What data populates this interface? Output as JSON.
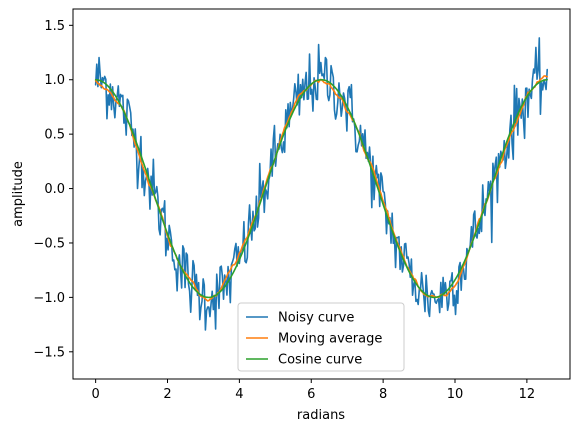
{
  "chart_data": {
    "type": "line",
    "title": "",
    "xlabel": "radians",
    "ylabel": "amplitude",
    "xlim": [
      -0.63,
      13.2
    ],
    "ylim": [
      -1.75,
      1.65
    ],
    "x_ticks": [
      0,
      2,
      4,
      6,
      8,
      10,
      12
    ],
    "y_ticks": [
      -1.5,
      -1.0,
      -0.5,
      0.0,
      0.5,
      1.0,
      1.5
    ],
    "x_tick_labels": [
      "0",
      "2",
      "4",
      "6",
      "8",
      "10",
      "12"
    ],
    "y_tick_labels": [
      "−1.5",
      "−1.0",
      "−0.5",
      "0.0",
      "0.5",
      "1.0",
      "1.5"
    ],
    "x_range": [
      0,
      12.566
    ],
    "num_points": 400,
    "noise_amplitude": 0.15,
    "moving_average_window": 20,
    "legend_placement": "lower-center",
    "grid": false,
    "series": [
      {
        "name": "Noisy curve",
        "color": "#1f77b4",
        "kind": "cosine-with-noise"
      },
      {
        "name": "Moving average",
        "color": "#ff7f0e",
        "kind": "moving-average"
      },
      {
        "name": "Cosine curve",
        "color": "#2ca02c",
        "kind": "cosine"
      }
    ]
  }
}
